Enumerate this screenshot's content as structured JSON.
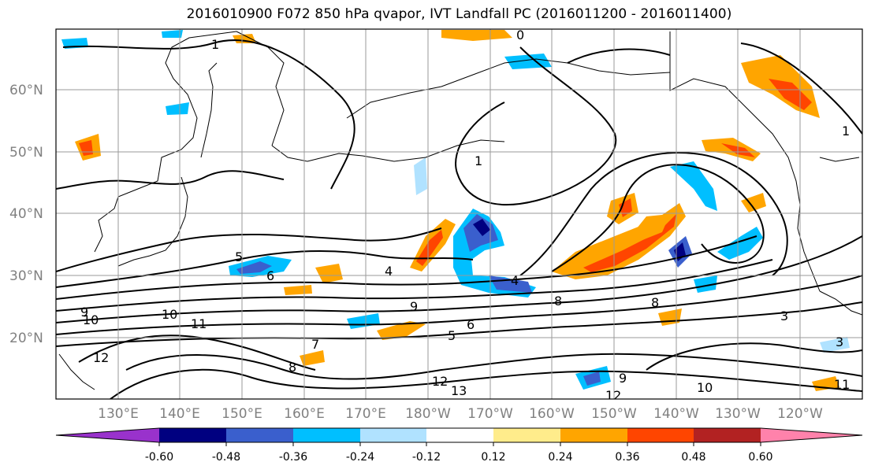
{
  "title": "2016010900 F072 850 hPa qvapor, IVT Landfall PC (2016011200 - 2016011400)",
  "map": {
    "lat_ticks": [
      "60°N",
      "50°N",
      "40°N",
      "30°N",
      "20°N"
    ],
    "lon_ticks": [
      "130°E",
      "140°E",
      "150°E",
      "160°E",
      "170°E",
      "180°W",
      "170°W",
      "160°W",
      "150°W",
      "140°W",
      "130°W",
      "120°W"
    ],
    "contour_labels": [
      "1",
      "0",
      "1",
      "1",
      "5",
      "6",
      "4",
      "4",
      "8",
      "8",
      "9",
      "10",
      "10",
      "11",
      "12",
      "13",
      "12",
      "10",
      "9",
      "6",
      "5",
      "7",
      "8",
      "3",
      "3",
      "11",
      "12",
      "9"
    ]
  },
  "colorbar": {
    "tick_labels": [
      "-0.60",
      "-0.48",
      "-0.36",
      "-0.24",
      "-0.12",
      "0.12",
      "0.24",
      "0.36",
      "0.48",
      "0.60"
    ],
    "colors": [
      "#9932CC",
      "#000080",
      "#3A5FCD",
      "#00BFFF",
      "#B0E2FF",
      "#FFFFFF",
      "#FFEC8B",
      "#FFA500",
      "#FF4500",
      "#B22222",
      "#FF82AB"
    ]
  }
}
